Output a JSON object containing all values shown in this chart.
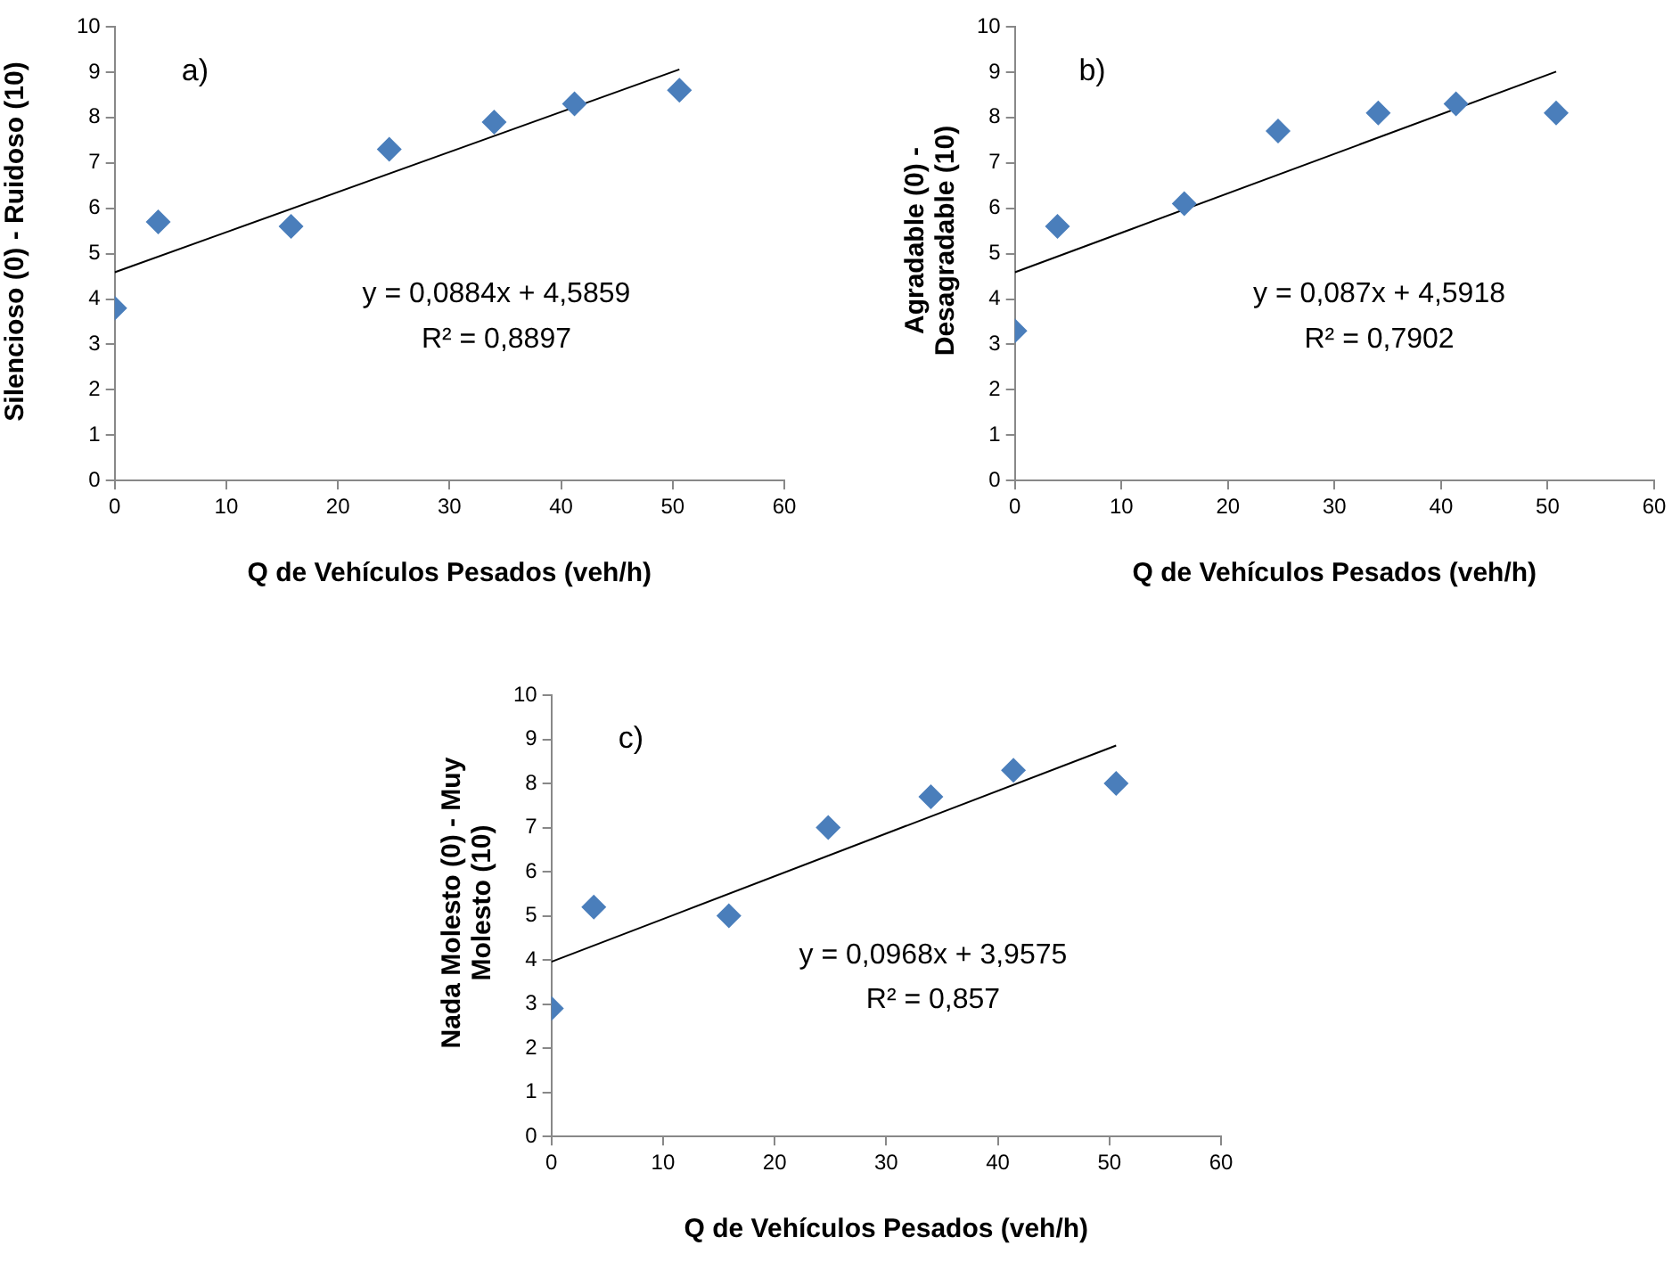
{
  "chart_data": [
    {
      "type": "scatter",
      "xlabel": "Q de Vehículos Pesados (veh/h)",
      "ylabel": "Silencioso (0) - Ruidoso (10)",
      "annotations": [
        "a)",
        "y = 0,0884x + 4,5859",
        "R² = 0,8897"
      ],
      "marker": "diamond",
      "grid": false,
      "legend": false,
      "xlim": [
        0,
        60
      ],
      "xticks": [
        0,
        10,
        20,
        30,
        40,
        50,
        60
      ],
      "ylim": [
        0,
        10
      ],
      "yticks": [
        0,
        1,
        2,
        3,
        4,
        5,
        6,
        7,
        8,
        9,
        10
      ],
      "series": [
        {
          "color": "#4a7ebb",
          "x": [
            0,
            3.9,
            15.8,
            24.6,
            34,
            41.2,
            50.6
          ],
          "values": [
            3.8,
            5.7,
            5.6,
            7.3,
            7.9,
            8.3,
            8.6
          ]
        },
        {
          "type": "line",
          "color": "#000000",
          "x": [
            0,
            50.6
          ],
          "values": [
            4.59,
            9.06
          ],
          "marker": "none"
        }
      ]
    },
    {
      "type": "scatter",
      "xlabel": "Q de Vehículos Pesados (veh/h)",
      "ylabel": "Agradable (0) - Desagradable (10)",
      "annotations": [
        "b)",
        "y = 0,087x + 4,5918",
        "R² = 0,7902"
      ],
      "marker": "diamond",
      "grid": false,
      "legend": false,
      "xlim": [
        0,
        60
      ],
      "xticks": [
        0,
        10,
        20,
        30,
        40,
        50,
        60
      ],
      "ylim": [
        0,
        10
      ],
      "yticks": [
        0,
        1,
        2,
        3,
        4,
        5,
        6,
        7,
        8,
        9,
        10
      ],
      "series": [
        {
          "color": "#4a7ebb",
          "x": [
            0,
            4,
            15.9,
            24.7,
            34.1,
            41.4,
            50.8
          ],
          "values": [
            3.3,
            5.6,
            6.1,
            7.7,
            8.1,
            8.3,
            8.1
          ]
        },
        {
          "type": "line",
          "color": "#000000",
          "x": [
            0,
            50.8
          ],
          "values": [
            4.59,
            9.01
          ],
          "marker": "none"
        }
      ]
    },
    {
      "type": "scatter",
      "xlabel": "Q de Vehículos Pesados (veh/h)",
      "ylabel": "Nada Molesto (0) - Muy Molesto (10)",
      "annotations": [
        "c)",
        "y = 0,0968x + 3,9575",
        "R² = 0,857"
      ],
      "marker": "diamond",
      "grid": false,
      "legend": false,
      "xlim": [
        0,
        60
      ],
      "xticks": [
        0,
        10,
        20,
        30,
        40,
        50,
        60
      ],
      "ylim": [
        0,
        10
      ],
      "yticks": [
        0,
        1,
        2,
        3,
        4,
        5,
        6,
        7,
        8,
        9,
        10
      ],
      "series": [
        {
          "color": "#4a7ebb",
          "x": [
            0,
            3.8,
            15.9,
            24.8,
            34,
            41.4,
            50.6
          ],
          "values": [
            2.9,
            5.2,
            5.0,
            7.0,
            7.7,
            8.3,
            8.0
          ]
        },
        {
          "type": "line",
          "color": "#000000",
          "x": [
            0,
            50.6
          ],
          "values": [
            3.96,
            8.86
          ],
          "marker": "none"
        }
      ]
    }
  ]
}
